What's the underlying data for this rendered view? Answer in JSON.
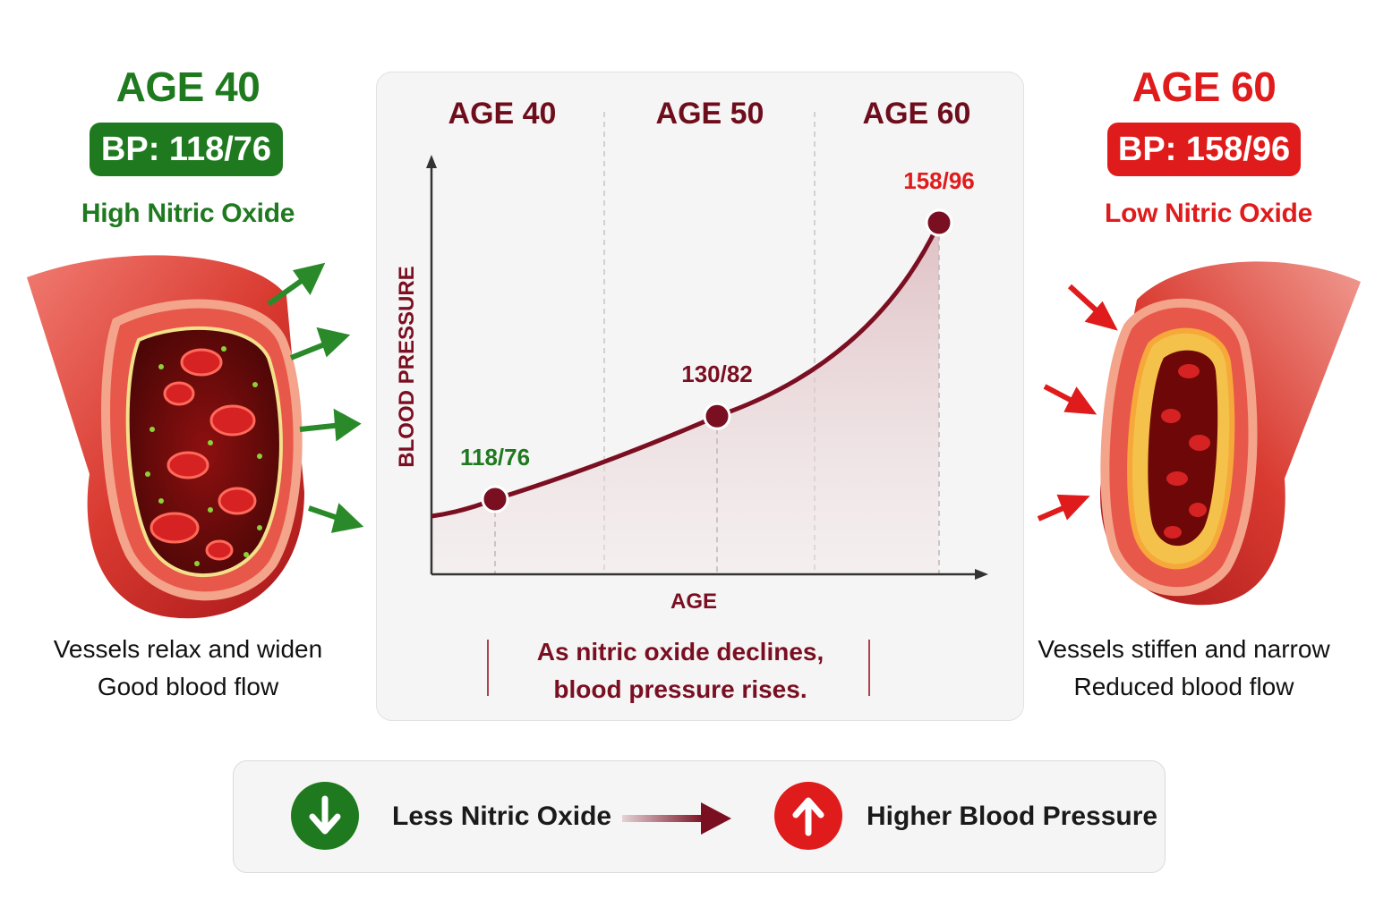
{
  "left": {
    "age_label": "AGE 40",
    "bp_label": "BP: 118/76",
    "no_label": "High Nitric Oxide",
    "caption_line1": "Vessels relax and widen",
    "caption_line2": "Good blood flow"
  },
  "right": {
    "age_label": "AGE 60",
    "bp_label": "BP: 158/96",
    "no_label": "Low Nitric Oxide",
    "caption_line1": "Vessels stiffen and narrow",
    "caption_line2": "Reduced blood flow"
  },
  "chart_data": {
    "type": "line",
    "column_labels": [
      "AGE 40",
      "AGE 50",
      "AGE 60"
    ],
    "xlabel": "AGE",
    "ylabel": "BLOOD PRESSURE",
    "points": [
      {
        "age": 40,
        "systolic": 118,
        "label": "118/76"
      },
      {
        "age": 50,
        "systolic": 130,
        "label": "130/82"
      },
      {
        "age": 60,
        "systolic": 158,
        "label": "158/96"
      }
    ],
    "footnote_line1": "As nitric oxide declines,",
    "footnote_line2": "blood pressure rises."
  },
  "summary": {
    "left_text": "Less Nitric Oxide",
    "right_text": "Higher Blood Pressure",
    "left_icon": "down-arrow-icon",
    "right_icon": "up-arrow-icon"
  },
  "colors": {
    "green": "#1f7a1f",
    "red": "#e01b1b",
    "maroon": "#7a0f22"
  }
}
